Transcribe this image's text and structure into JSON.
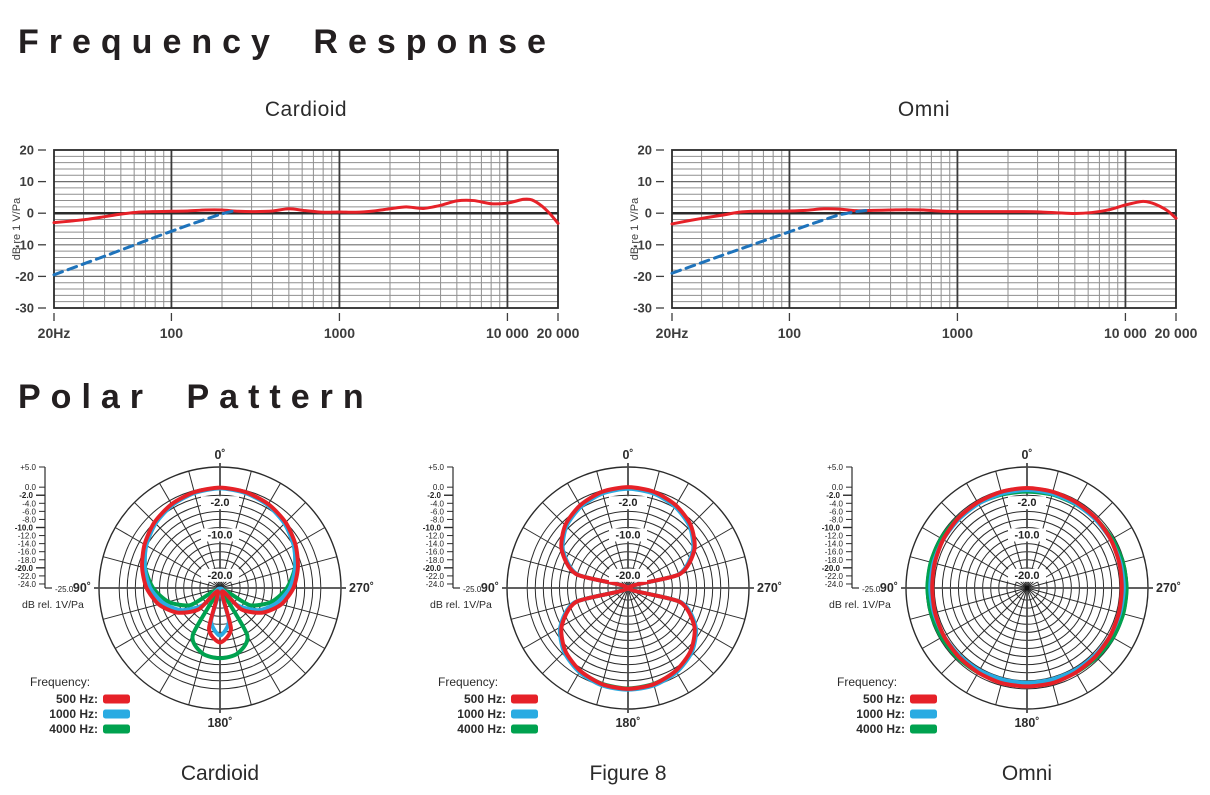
{
  "titles": {
    "frequency_response": "Frequency Response",
    "polar_pattern": "Polar Pattern"
  },
  "colors": {
    "red": "#e62128",
    "blue": "#1e73bb",
    "cyan": "#29abe2",
    "green": "#00a24f",
    "grid_minor": "#8f8f8f",
    "grid_mid": "#6f6f6f",
    "axis_dark": "#2b2b2b",
    "text_dark": "#3d3d3d",
    "polar_grid": "#2b2b2b",
    "polar_axis": "#4a4a4a"
  },
  "polar_scale": {
    "max_db": 5,
    "min_db": -25,
    "rings_db": [
      5,
      0,
      -2,
      -4,
      -6,
      -8,
      -10,
      -12,
      -14,
      -16,
      -18,
      -20,
      -22,
      -24
    ],
    "ticks": [
      {
        "db": 5,
        "label": "+5.0",
        "bold": false
      },
      {
        "db": 0,
        "label": "0.0",
        "bold": false
      },
      {
        "db": -2,
        "label": "-2.0",
        "bold": true
      },
      {
        "db": -4,
        "label": "-4.0",
        "bold": false
      },
      {
        "db": -6,
        "label": "-6.0",
        "bold": false
      },
      {
        "db": -8,
        "label": "-8.0",
        "bold": false
      },
      {
        "db": -10,
        "label": "-10.0",
        "bold": true
      },
      {
        "db": -12,
        "label": "-12.0",
        "bold": false
      },
      {
        "db": -14,
        "label": "-14.0",
        "bold": false
      },
      {
        "db": -16,
        "label": "-16.0",
        "bold": false
      },
      {
        "db": -18,
        "label": "-18.0",
        "bold": false
      },
      {
        "db": -20,
        "label": "-20.0",
        "bold": true
      },
      {
        "db": -22,
        "label": "-22.0",
        "bold": false
      },
      {
        "db": -24,
        "label": "-24.0",
        "bold": false
      }
    ],
    "corner_label": "-25.0",
    "unit_label": "dB rel. 1V/Pa"
  },
  "polar_legend": {
    "title": "Frequency:",
    "entries": [
      {
        "label": "500 Hz:",
        "color": "red"
      },
      {
        "label": "1000 Hz:",
        "color": "cyan"
      },
      {
        "label": "4000 Hz:",
        "color": "green"
      }
    ]
  },
  "chart_data": [
    {
      "type": "line",
      "id": "freq-cardioid",
      "title": "Cardioid",
      "ylabel": "dB re 1 V/Pa",
      "ylim": [
        -30,
        20
      ],
      "yticks": [
        20,
        10,
        0,
        -10,
        -20,
        -30
      ],
      "x_scale": "log",
      "xlim": [
        20,
        20000
      ],
      "xticks": [
        {
          "value": 20,
          "label": "20Hz"
        },
        {
          "value": 100,
          "label": "100"
        },
        {
          "value": 1000,
          "label": "1000"
        },
        {
          "value": 10000,
          "label": "10 000"
        },
        {
          "value": 20000,
          "label": "20 000"
        }
      ],
      "grid": "log",
      "series": [
        {
          "name": "frequency-response",
          "color": "red",
          "line": "solid",
          "points": [
            [
              20,
              -3
            ],
            [
              25,
              -2.5
            ],
            [
              32,
              -1.9
            ],
            [
              40,
              -1.1
            ],
            [
              50,
              -0.3
            ],
            [
              63,
              0.3
            ],
            [
              80,
              0.5
            ],
            [
              100,
              0.6
            ],
            [
              125,
              0.7
            ],
            [
              160,
              1.0
            ],
            [
              200,
              1.0
            ],
            [
              250,
              0.6
            ],
            [
              315,
              0.5
            ],
            [
              400,
              0.7
            ],
            [
              500,
              1.4
            ],
            [
              630,
              0.8
            ],
            [
              800,
              0.3
            ],
            [
              1000,
              0.4
            ],
            [
              1250,
              0.3
            ],
            [
              1600,
              0.7
            ],
            [
              2000,
              1.4
            ],
            [
              2500,
              2.0
            ],
            [
              3150,
              1.5
            ],
            [
              4000,
              2.5
            ],
            [
              5000,
              3.9
            ],
            [
              6300,
              4.0
            ],
            [
              8000,
              3.0
            ],
            [
              10000,
              3.2
            ],
            [
              12500,
              4.4
            ],
            [
              14000,
              4.2
            ],
            [
              16000,
              2.3
            ],
            [
              18000,
              -0.3
            ],
            [
              20000,
              -3.2
            ]
          ]
        },
        {
          "name": "low-frequency-rolloff",
          "color": "blue",
          "line": "dashed",
          "points": [
            [
              20,
              -19.5
            ],
            [
              40,
              -13.6
            ],
            [
              80,
              -7.6
            ],
            [
              120,
              -4.2
            ],
            [
              160,
              -1.9
            ],
            [
              200,
              -0.2
            ],
            [
              230,
              0.6
            ]
          ]
        }
      ]
    },
    {
      "type": "line",
      "id": "freq-omni",
      "title": "Omni",
      "ylabel": "dB re 1 V/Pa",
      "ylim": [
        -30,
        20
      ],
      "yticks": [
        20,
        10,
        0,
        -10,
        -20,
        -30
      ],
      "x_scale": "log",
      "xlim": [
        20,
        20000
      ],
      "xticks": [
        {
          "value": 20,
          "label": "20Hz"
        },
        {
          "value": 100,
          "label": "100"
        },
        {
          "value": 1000,
          "label": "1000"
        },
        {
          "value": 10000,
          "label": "10 000"
        },
        {
          "value": 20000,
          "label": "20 000"
        }
      ],
      "grid": "log",
      "series": [
        {
          "name": "frequency-response",
          "color": "red",
          "line": "solid",
          "points": [
            [
              20,
              -3.4
            ],
            [
              25,
              -2.4
            ],
            [
              32,
              -1.4
            ],
            [
              40,
              -0.6
            ],
            [
              50,
              0.3
            ],
            [
              63,
              0.6
            ],
            [
              80,
              0.6
            ],
            [
              100,
              0.7
            ],
            [
              125,
              0.9
            ],
            [
              160,
              1.4
            ],
            [
              200,
              1.3
            ],
            [
              250,
              0.8
            ],
            [
              315,
              0.9
            ],
            [
              400,
              1.0
            ],
            [
              500,
              1.1
            ],
            [
              630,
              1.0
            ],
            [
              800,
              0.6
            ],
            [
              1000,
              0.5
            ],
            [
              1250,
              0.5
            ],
            [
              1600,
              0.5
            ],
            [
              2000,
              0.5
            ],
            [
              2500,
              0.5
            ],
            [
              3150,
              0.4
            ],
            [
              4000,
              0.1
            ],
            [
              5000,
              -0.1
            ],
            [
              6300,
              0.2
            ],
            [
              8000,
              1.1
            ],
            [
              10000,
              2.6
            ],
            [
              12500,
              3.7
            ],
            [
              14000,
              3.4
            ],
            [
              16000,
              2.2
            ],
            [
              18000,
              0.6
            ],
            [
              20000,
              -1.6
            ]
          ]
        },
        {
          "name": "low-frequency-rolloff",
          "color": "blue",
          "line": "dashed",
          "points": [
            [
              20,
              -19
            ],
            [
              40,
              -13.3
            ],
            [
              80,
              -7.7
            ],
            [
              120,
              -4.4
            ],
            [
              160,
              -2.1
            ],
            [
              200,
              -0.5
            ],
            [
              250,
              0.5
            ],
            [
              300,
              1.0
            ]
          ]
        }
      ]
    },
    {
      "type": "polar",
      "id": "polar-cardioid",
      "caption": "Cardioid",
      "angle_labels": [
        {
          "deg": 0,
          "label": "0˚"
        },
        {
          "deg": 90,
          "label": "90˚"
        },
        {
          "deg": 270,
          "label": "270˚"
        },
        {
          "deg": 180,
          "label": "180˚"
        }
      ],
      "ring_annotations": [
        {
          "db": -2,
          "label": "-2.0"
        },
        {
          "db": -10,
          "label": "-10.0"
        },
        {
          "db": -20,
          "label": "-20.0"
        }
      ],
      "angle_step_deg": 15,
      "series": [
        {
          "name": "4000 Hz",
          "color": "green",
          "values_db": [
            -0.2,
            -0.5,
            -1.2,
            -2.3,
            -3.8,
            -5.8,
            -8.4,
            -11.8,
            -16.5,
            -24,
            -11.5,
            -8.2,
            -7.6,
            -8.2,
            -11.5,
            -24,
            -16.5,
            -11.8,
            -8.4,
            -5.8,
            -3.8,
            -2.3,
            -1.2,
            -0.5
          ]
        },
        {
          "name": "1000 Hz",
          "color": "cyan",
          "values_db": [
            -0.3,
            -0.6,
            -1.3,
            -2.4,
            -3.9,
            -5.7,
            -7.7,
            -10.5,
            -14,
            -19,
            -24.8,
            -16.5,
            -13.2,
            -16.5,
            -24.8,
            -19,
            -14,
            -10.5,
            -7.7,
            -5.7,
            -3.9,
            -2.4,
            -1.3,
            -0.6
          ]
        },
        {
          "name": "500 Hz",
          "color": "red",
          "values_db": [
            -0.1,
            -0.4,
            -1.0,
            -2.0,
            -3.4,
            -5.0,
            -6.8,
            -9.3,
            -12.8,
            -17.5,
            -24,
            -14.5,
            -11.5,
            -14.5,
            -24,
            -17.5,
            -12.8,
            -9.3,
            -6.8,
            -5.0,
            -3.4,
            -2.0,
            -1.0,
            -0.4
          ]
        }
      ]
    },
    {
      "type": "polar",
      "id": "polar-figure8",
      "caption": "Figure 8",
      "angle_labels": [
        {
          "deg": 0,
          "label": "0˚"
        },
        {
          "deg": 90,
          "label": "90˚"
        },
        {
          "deg": 270,
          "label": "270˚"
        },
        {
          "deg": 180,
          "label": "180˚"
        }
      ],
      "ring_annotations": [
        {
          "db": -2,
          "label": "-2.0"
        },
        {
          "db": -10,
          "label": "-10.0"
        },
        {
          "db": -20,
          "label": "-20.0"
        }
      ],
      "angle_step_deg": 15,
      "series": [
        {
          "name": "4000 Hz",
          "color": "green",
          "values_db": [
            -0.2,
            -0.5,
            -1.5,
            -3.2,
            -6.2,
            -11.9,
            -25,
            -11.5,
            -5.9,
            -2.9,
            -1.2,
            -0.4,
            -0.1,
            -0.4,
            -1.2,
            -2.9,
            -5.9,
            -11.5,
            -25,
            -11.9,
            -6.2,
            -3.2,
            -1.5,
            -0.5
          ]
        },
        {
          "name": "1000 Hz",
          "color": "cyan",
          "values_db": [
            -0.4,
            -0.7,
            -1.7,
            -3.4,
            -6.4,
            -12,
            -25,
            -11.3,
            -5.6,
            -2.6,
            -0.9,
            0,
            0.2,
            0,
            -0.9,
            -2.6,
            -5.6,
            -11.3,
            -25,
            -12,
            -6.4,
            -3.4,
            -1.7,
            -0.7
          ]
        },
        {
          "name": "500 Hz",
          "color": "red",
          "values_db": [
            0,
            -0.3,
            -1.3,
            -3.0,
            -6.0,
            -11.7,
            -25,
            -11.7,
            -6.0,
            -3.0,
            -1.3,
            -0.3,
            0,
            -0.3,
            -1.3,
            -3.0,
            -6.0,
            -11.7,
            -25,
            -11.7,
            -6.0,
            -3.0,
            -1.3,
            -0.3
          ]
        }
      ]
    },
    {
      "type": "polar",
      "id": "polar-omni",
      "caption": "Omni",
      "angle_labels": [
        {
          "deg": 0,
          "label": "0˚"
        },
        {
          "deg": 90,
          "label": "90˚"
        },
        {
          "deg": 270,
          "label": "270˚"
        },
        {
          "deg": 180,
          "label": "180˚"
        }
      ],
      "ring_annotations": [
        {
          "db": -2,
          "label": "-2.0"
        },
        {
          "db": -10,
          "label": "-10.0"
        },
        {
          "db": -20,
          "label": "-20.0"
        }
      ],
      "angle_step_deg": 15,
      "series": [
        {
          "name": "4000 Hz",
          "color": "green",
          "values_db": [
            -1.1,
            -1.0,
            -0.8,
            -0.6,
            -0.4,
            -0.3,
            -0.3,
            -0.4,
            -0.5,
            -0.6,
            -0.8,
            -1.0,
            -1.1,
            -1.0,
            -0.8,
            -0.6,
            -0.4,
            -0.3,
            -0.3,
            -0.4,
            -0.6,
            -0.8,
            -1.0,
            -1.0
          ]
        },
        {
          "name": "1000 Hz",
          "color": "cyan",
          "values_db": [
            -0.7,
            -0.8,
            -0.9,
            -1.0,
            -1.0,
            -1.0,
            -1.0,
            -1.1,
            -1.2,
            -1.3,
            -1.4,
            -1.5,
            -1.5,
            -1.5,
            -1.4,
            -1.3,
            -1.2,
            -1.1,
            -1.0,
            -1.0,
            -1.0,
            -1.0,
            -0.9,
            -0.8
          ]
        },
        {
          "name": "500 Hz",
          "color": "red",
          "values_db": [
            -0.2,
            -0.3,
            -0.5,
            -0.7,
            -1.0,
            -1.3,
            -1.5,
            -1.4,
            -1.2,
            -1.0,
            -0.8,
            -0.6,
            -0.6,
            -0.6,
            -0.8,
            -1.0,
            -1.2,
            -1.4,
            -1.5,
            -1.3,
            -1.0,
            -0.7,
            -0.5,
            -0.3
          ]
        }
      ]
    }
  ]
}
